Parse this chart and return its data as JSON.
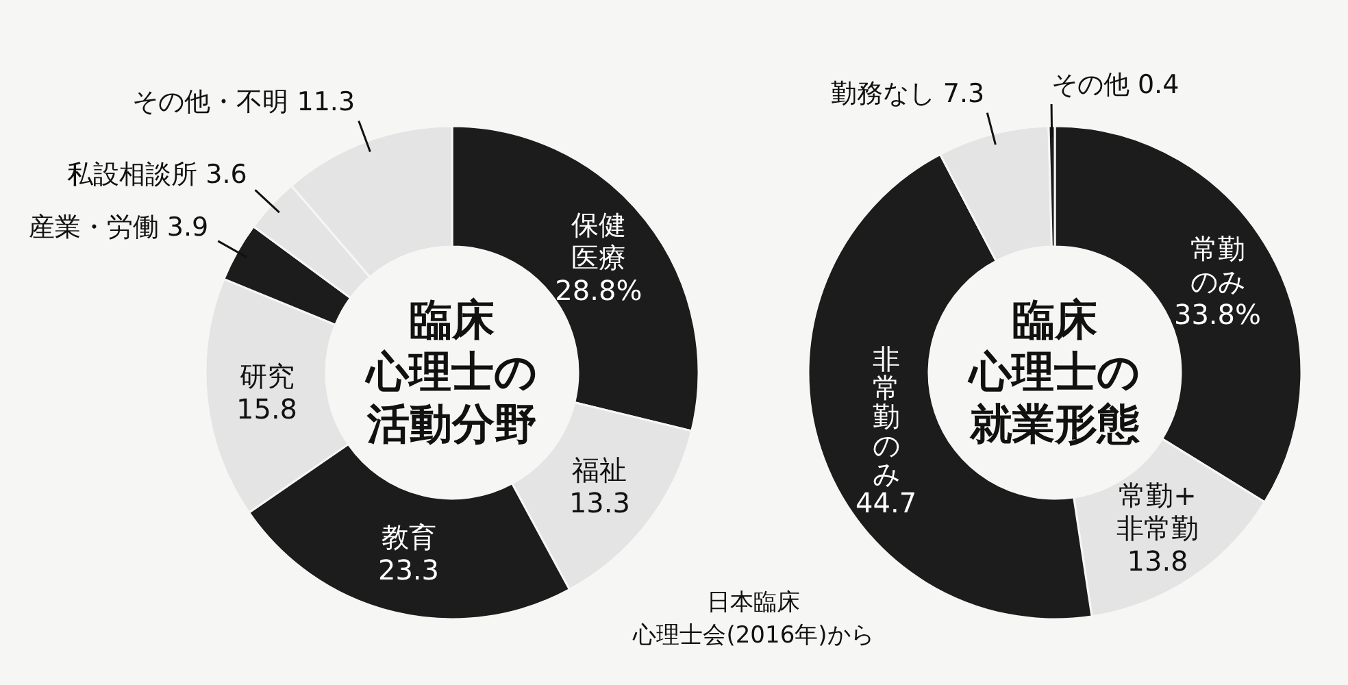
{
  "chart_data": [
    {
      "type": "donut",
      "title": "臨床心理士の活動分野",
      "categories": [
        "保健医療",
        "福祉",
        "教育",
        "研究",
        "産業・労働",
        "私設相談所",
        "その他・不明"
      ],
      "values": [
        28.8,
        13.3,
        23.3,
        15.8,
        3.9,
        3.6,
        11.3
      ],
      "value_labels": [
        "28.8%",
        "13.3",
        "23.3",
        "15.8",
        "3.9",
        "3.6",
        "11.3"
      ],
      "colors": [
        "#1c1c1c",
        "#e4e4e4",
        "#1c1c1c",
        "#e4e4e4",
        "#1c1c1c",
        "#e4e4e4",
        "#e4e4e4"
      ]
    },
    {
      "type": "donut",
      "title": "臨床心理士の就業形態",
      "categories": [
        "常勤のみ",
        "常勤+非常勤",
        "非常勤のみ",
        "勤務なし",
        "その他"
      ],
      "values": [
        33.8,
        13.8,
        44.7,
        7.3,
        0.4
      ],
      "value_labels": [
        "33.8%",
        "13.8",
        "44.7",
        "7.3",
        "0.4"
      ],
      "colors": [
        "#1c1c1c",
        "#e4e4e4",
        "#1c1c1c",
        "#e4e4e4",
        "#1c1c1c"
      ],
      "annotations": [
        "日本臨床心理士会(2016年)から"
      ]
    }
  ]
}
